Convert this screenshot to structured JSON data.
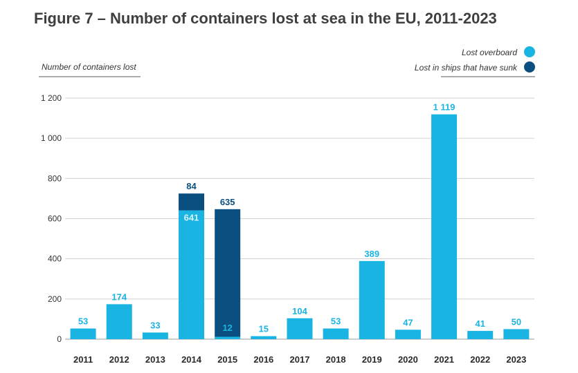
{
  "title": "Figure 7 – Number of containers lost at sea in the EU, 2011-2023",
  "colors": {
    "overboard": "#1ab4e3",
    "sunk": "#0a4f80",
    "grid": "#d0d0d0",
    "axis": "#999999"
  },
  "chart_data": {
    "type": "bar",
    "stacked": true,
    "title": "Figure 7 – Number of containers lost at sea in the EU, 2011-2023",
    "ylabel": "Number of containers lost",
    "xlabel": "",
    "ylim": [
      0,
      1200
    ],
    "yticks": [
      0,
      200,
      400,
      600,
      800,
      1000,
      1200
    ],
    "ytick_labels": [
      "0",
      "200",
      "400",
      "600",
      "800",
      "1 000",
      "1 200"
    ],
    "categories": [
      "2011",
      "2012",
      "2013",
      "2014",
      "2015",
      "2016",
      "2017",
      "2018",
      "2019",
      "2020",
      "2021",
      "2022",
      "2023"
    ],
    "legend_position": "top-right",
    "series": [
      {
        "name": "Lost overboard",
        "color": "#1ab4e3",
        "values": [
          53,
          174,
          33,
          641,
          12,
          15,
          104,
          53,
          389,
          47,
          1119,
          41,
          50
        ],
        "labels": [
          "53",
          "174",
          "33",
          "641",
          "12",
          "15",
          "104",
          "53",
          "389",
          "47",
          "1 119",
          "41",
          "50"
        ]
      },
      {
        "name": "Lost in ships that have sunk",
        "color": "#0a4f80",
        "values": [
          0,
          0,
          0,
          84,
          635,
          0,
          0,
          0,
          0,
          0,
          0,
          0,
          0
        ],
        "labels": [
          "",
          "",
          "",
          "84",
          "635",
          "",
          "",
          "",
          "",
          "",
          "",
          "",
          ""
        ]
      }
    ]
  }
}
